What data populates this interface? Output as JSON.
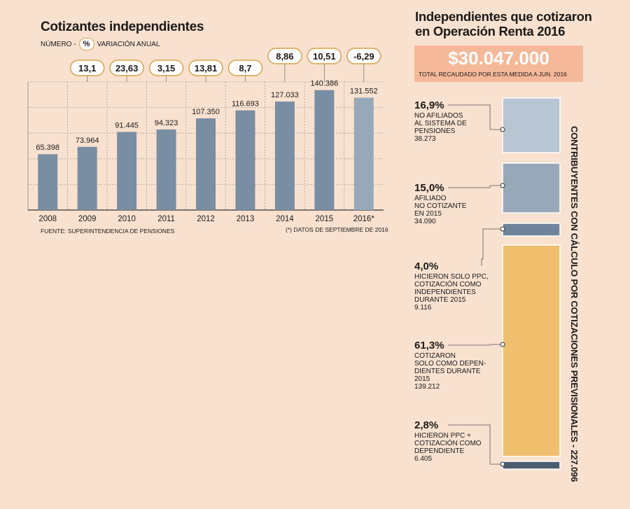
{
  "left": {
    "title": "Cotizantes independientes",
    "legend_prefix": "NÚMERO -",
    "legend_pct": "%",
    "legend_suffix": "VARIACIÓN ANUAL",
    "source": "FUENTE: SUPERINTENDENCIA DE PENSIONES",
    "footnote": "(*) DATOS DE SEPTIEMBRE DE 2016"
  },
  "right": {
    "title_line1": "Independientes que cotizaron",
    "title_line2": "en Operación Renta 2016",
    "total_amount": "$30.047.000",
    "total_caption": "TOTAL RECAUDADO POR ESTA MEDIDA A JUN. 2016",
    "vertical_label": "CONTRIBUYENTES CON CÁLCULO POR COTIZACIONES PREVISIONALES - 227.096"
  },
  "colors": {
    "bar": "#7a8ea3",
    "bar_last": "#97a8b9",
    "bubble_border": "#d8a34a",
    "seg1": "#b8c5d2",
    "seg2": "#97a8b9",
    "seg3": "#6f849a",
    "seg4": "#f0bf6e",
    "seg5": "#4b5e70"
  },
  "chart_data": [
    {
      "type": "bar",
      "title": "Cotizantes independientes",
      "categories": [
        "2008",
        "2009",
        "2010",
        "2011",
        "2012",
        "2013",
        "2014",
        "2015",
        "2016*"
      ],
      "values": [
        65398,
        73964,
        91445,
        94323,
        107350,
        116693,
        127033,
        140386,
        131552
      ],
      "value_labels": [
        "65.398",
        "73.964",
        "91.445",
        "94.323",
        "107.350",
        "116.693",
        "127.033",
        "140.386",
        "131.552"
      ],
      "annual_variation": [
        null,
        "13,1",
        "23,63",
        "3,15",
        "13,81",
        "8,7",
        "8,86",
        "10,51",
        "-6,29"
      ],
      "ylim": [
        0,
        150000
      ],
      "grid": true,
      "xlabel": "",
      "ylabel": ""
    },
    {
      "type": "bar",
      "subtype": "stacked",
      "title": "Independientes que cotizaron en Operación Renta 2016",
      "segments": [
        {
          "pct": "16,9%",
          "lines": [
            "NO AFILIADOS",
            "AL SISTEMA DE",
            "PENSIONES"
          ],
          "count_label": "38.273",
          "value": 38273
        },
        {
          "pct": "15,0%",
          "lines": [
            "AFILIADO",
            "NO COTIZANTE",
            "EN 2015"
          ],
          "count_label": "34.090",
          "value": 34090
        },
        {
          "pct": "4,0%",
          "lines": [
            "HICIERON SOLO PPC,",
            "COTIZACIÓN COMO",
            "INDEPENDIENTES",
            "DURANTE 2015"
          ],
          "count_label": "9.116",
          "value": 9116
        },
        {
          "pct": "61,3%",
          "lines": [
            "COTIZARON",
            "SOLO COMO DEPEN-",
            "DIENTES DURANTE",
            "2015"
          ],
          "count_label": "139.212",
          "value": 139212
        },
        {
          "pct": "2,8%",
          "lines": [
            "HICIERON PPC +",
            "COTIZACIÓN COMO",
            "DEPENDIENTE"
          ],
          "count_label": "6.405",
          "value": 6405
        }
      ]
    }
  ]
}
